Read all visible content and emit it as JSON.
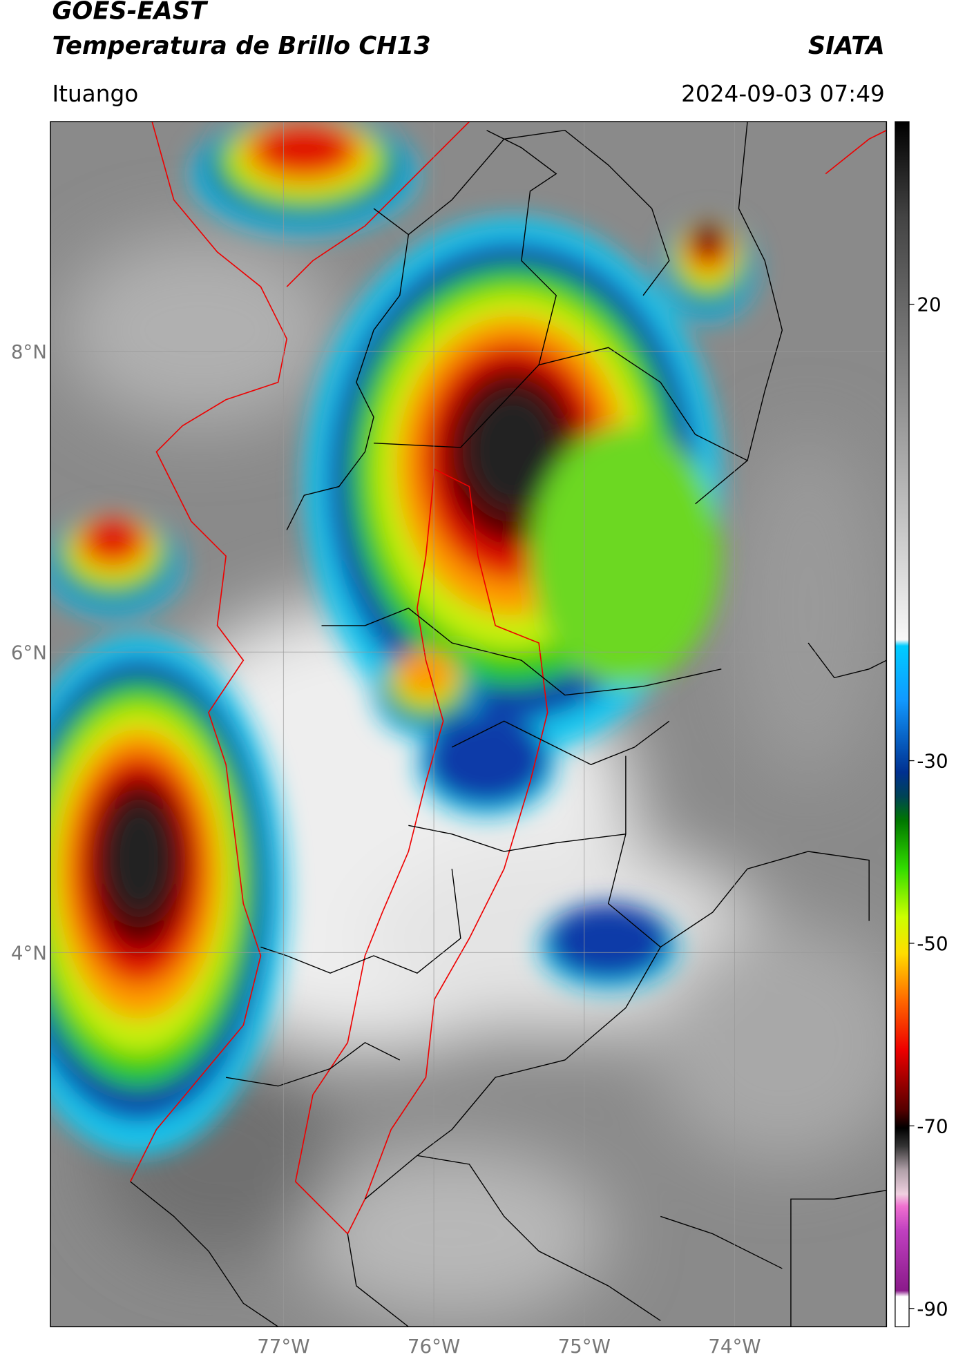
{
  "header": {
    "satellite": "GOES-EAST",
    "product": "Temperatura de Brillo CH13",
    "agency": "SIATA",
    "location": "Ituango",
    "timestamp": "2024-09-03 07:49"
  },
  "map": {
    "lat_range": [
      1.51,
      9.53
    ],
    "lon_range": [
      -78.55,
      -72.99
    ],
    "lat_ticks": [
      {
        "value": 8,
        "label": "8°N"
      },
      {
        "value": 6,
        "label": "6°N"
      },
      {
        "value": 4,
        "label": "4°N"
      }
    ],
    "lon_ticks": [
      {
        "value": -77,
        "label": "77°W"
      },
      {
        "value": -76,
        "label": "76°W"
      },
      {
        "value": -75,
        "label": "75°W"
      },
      {
        "value": -74,
        "label": "74°W"
      }
    ],
    "grid": true
  },
  "colorbar": {
    "range": [
      -92,
      40
    ],
    "ticks": [
      20,
      -30,
      -50,
      -70,
      -90
    ]
  }
}
